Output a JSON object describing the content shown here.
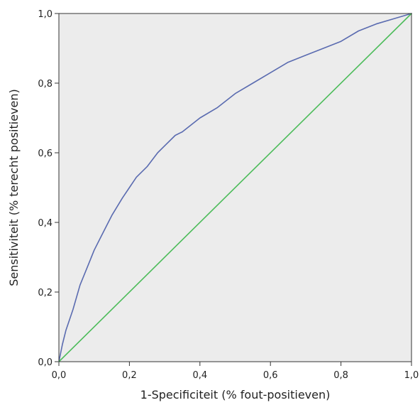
{
  "chart_data": {
    "type": "line",
    "title": "",
    "xlabel": "1-Specificiteit (% fout-positieven)",
    "ylabel": "Sensitiviteit (% terecht positieven)",
    "xlim": [
      0,
      1
    ],
    "ylim": [
      0,
      1
    ],
    "x_ticks": [
      0,
      0.2,
      0.4,
      0.6,
      0.8,
      1.0
    ],
    "y_ticks": [
      0,
      0.2,
      0.4,
      0.6,
      0.8,
      1.0
    ],
    "x_tick_labels": [
      "0,0",
      "0,2",
      "0,4",
      "0,6",
      "0,8",
      "1,0"
    ],
    "y_tick_labels": [
      "0,0",
      "0,2",
      "0,4",
      "0,6",
      "0,8",
      "1,0"
    ],
    "grid": false,
    "legend": "none",
    "series": [
      {
        "color": "#5a6bb0",
        "x": [
          0,
          0.01,
          0.02,
          0.04,
          0.06,
          0.08,
          0.1,
          0.12,
          0.15,
          0.18,
          0.2,
          0.22,
          0.25,
          0.28,
          0.3,
          0.33,
          0.35,
          0.4,
          0.45,
          0.5,
          0.55,
          0.6,
          0.65,
          0.7,
          0.75,
          0.8,
          0.85,
          0.9,
          0.95,
          1.0
        ],
        "y": [
          0,
          0.05,
          0.09,
          0.15,
          0.22,
          0.27,
          0.32,
          0.36,
          0.42,
          0.47,
          0.5,
          0.53,
          0.56,
          0.6,
          0.62,
          0.65,
          0.66,
          0.7,
          0.73,
          0.77,
          0.8,
          0.83,
          0.86,
          0.88,
          0.9,
          0.92,
          0.95,
          0.97,
          0.985,
          1.0
        ]
      },
      {
        "color": "#4cbc5a",
        "x": [
          0,
          1
        ],
        "y": [
          0,
          1
        ]
      }
    ],
    "colors": {
      "plot_background": "#ececec",
      "frame": "#333333",
      "roc_curve": "#5a6bb0",
      "reference_line": "#4cbc5a"
    }
  }
}
